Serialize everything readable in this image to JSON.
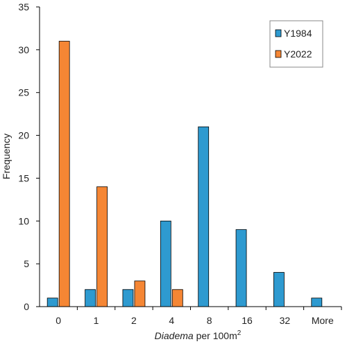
{
  "chart_data": {
    "type": "bar",
    "categories": [
      "0",
      "1",
      "2",
      "4",
      "8",
      "16",
      "32",
      "More"
    ],
    "series": [
      {
        "name": "Y1984",
        "color": "#2E9AD0",
        "values": [
          1,
          2,
          2,
          10,
          21,
          9,
          4,
          1
        ]
      },
      {
        "name": "Y2022",
        "color": "#F58634",
        "values": [
          31,
          14,
          3,
          2,
          0,
          0,
          0,
          0
        ]
      }
    ],
    "xlabel": {
      "italic": "Diadema",
      "rest": " per 100m",
      "sup": "2"
    },
    "ylabel": "Frequency",
    "ylim": [
      0,
      35
    ],
    "yticks": [
      "0",
      "5",
      "10",
      "15",
      "20",
      "25",
      "30",
      "35"
    ],
    "grid": false,
    "legend_position": "top-right"
  }
}
